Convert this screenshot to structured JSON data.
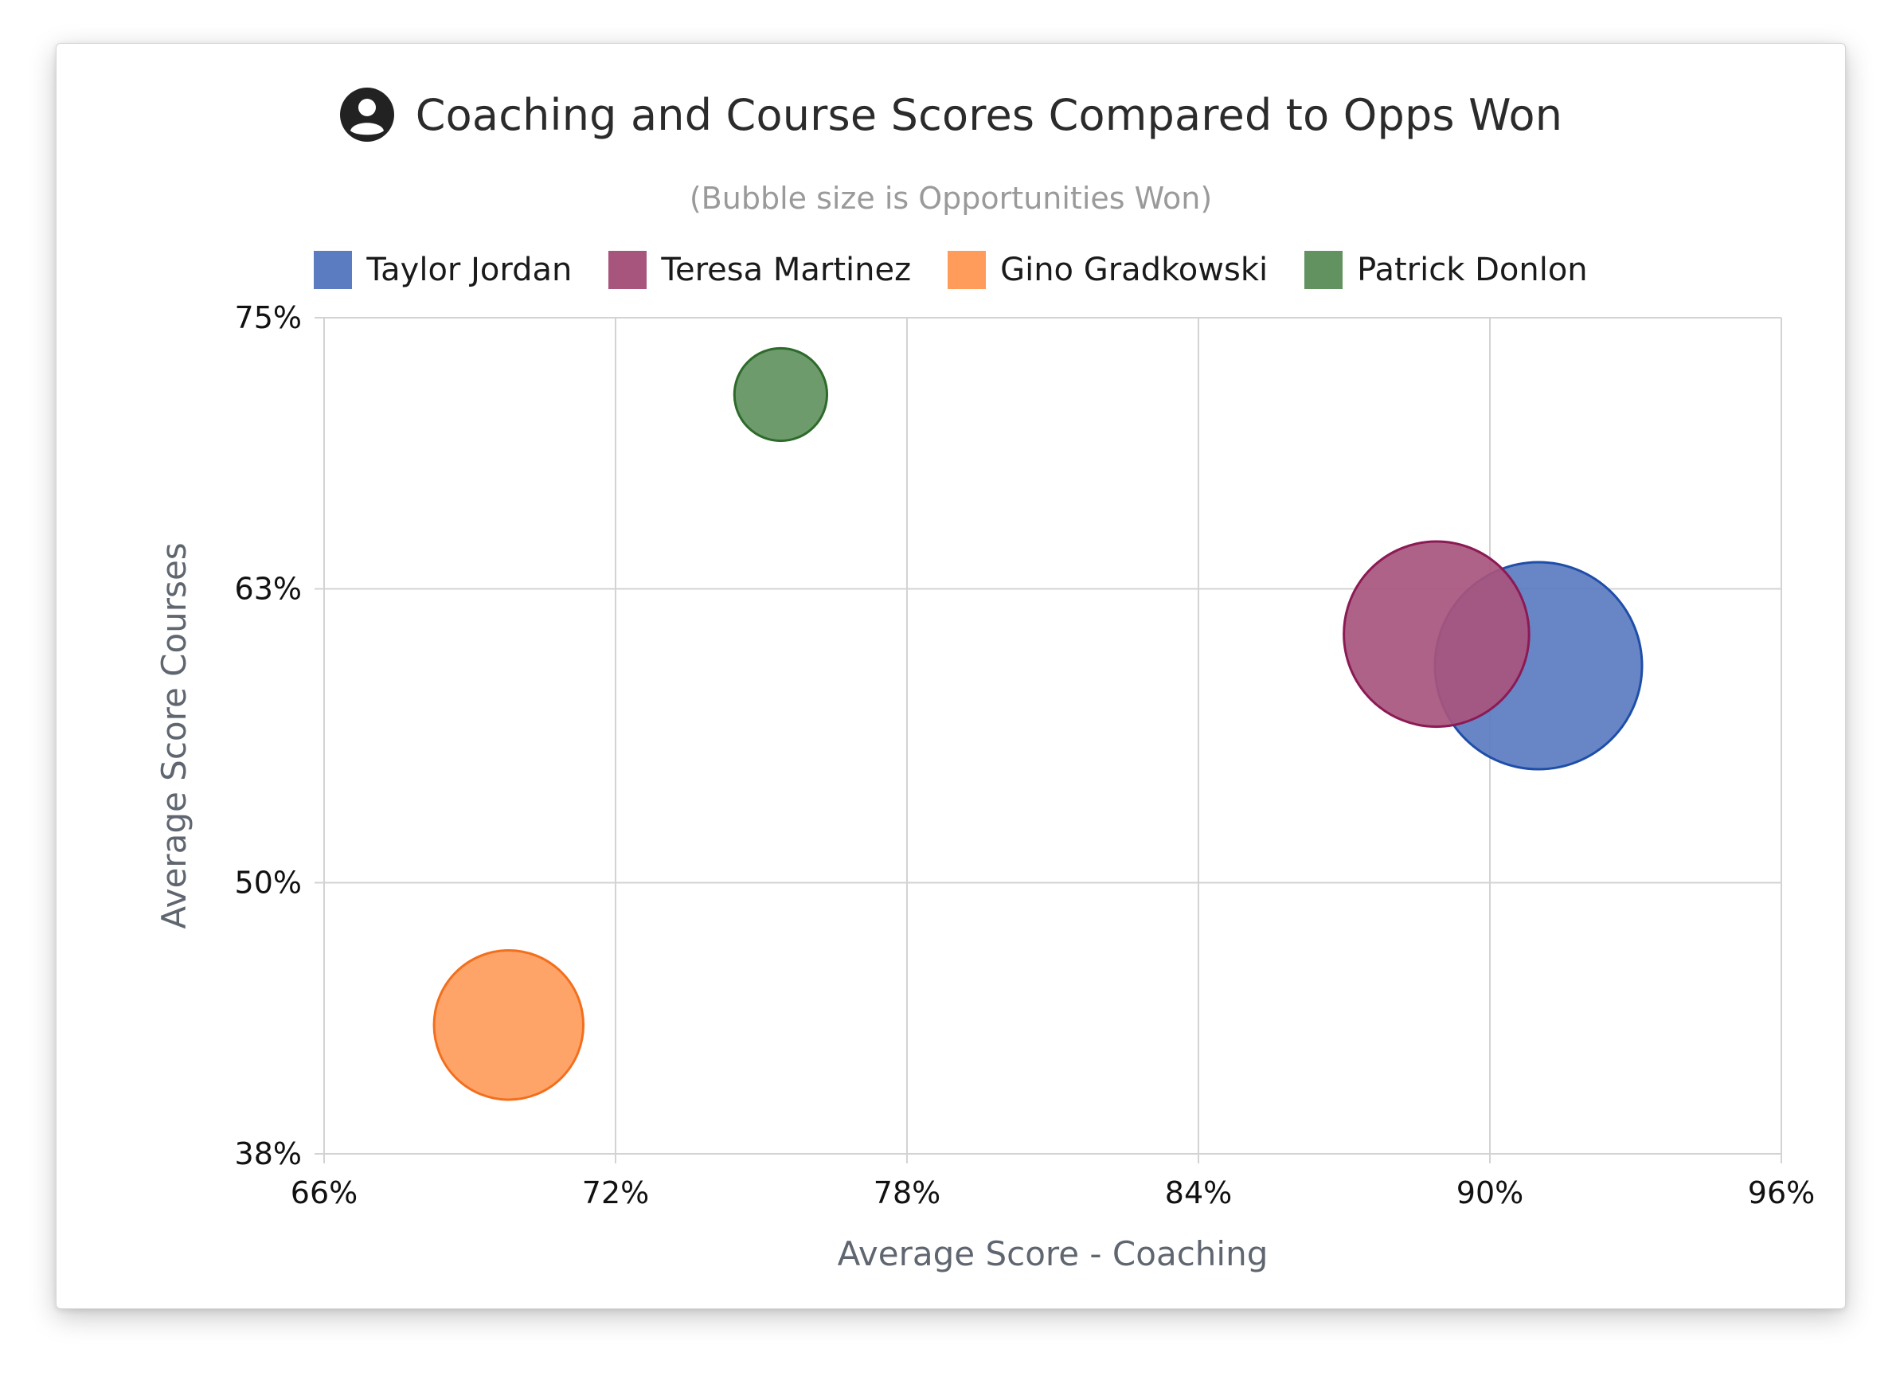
{
  "chart_data": {
    "type": "bubble",
    "title": "Coaching and Course Scores Compared to Opps Won",
    "subtitle": "(Bubble size is Opportunities Won)",
    "title_icon": "person-circle-icon",
    "xlabel": "Average Score - Coaching",
    "ylabel": "Average Score Courses",
    "xlim": [
      66,
      96
    ],
    "ylim": [
      38,
      75
    ],
    "x_ticks": [
      "66%",
      "72%",
      "78%",
      "84%",
      "90%",
      "96%"
    ],
    "x_tick_values": [
      66,
      72,
      78,
      84,
      90,
      96
    ],
    "y_ticks": [
      "75%",
      "63%",
      "50%",
      "38%"
    ],
    "y_tick_values": [
      75,
      63,
      50,
      38
    ],
    "grid": true,
    "legend_position": "top-center",
    "series": [
      {
        "name": "Taylor Jordan",
        "x": 91.0,
        "y": 59.6,
        "size": 25,
        "fill": "#5b7cc1",
        "stroke": "#1f4ea8"
      },
      {
        "name": "Teresa Martinez",
        "x": 88.9,
        "y": 61.0,
        "size": 20,
        "fill": "#a8557d",
        "stroke": "#8b1a55"
      },
      {
        "name": "Gino Gradkowski",
        "x": 69.8,
        "y": 43.7,
        "size": 13,
        "fill": "#ff9c5c",
        "stroke": "#f26f1d"
      },
      {
        "name": "Patrick Donlon",
        "x": 75.4,
        "y": 71.6,
        "size": 5,
        "fill": "#61925f",
        "stroke": "#2d6a2b"
      }
    ]
  }
}
